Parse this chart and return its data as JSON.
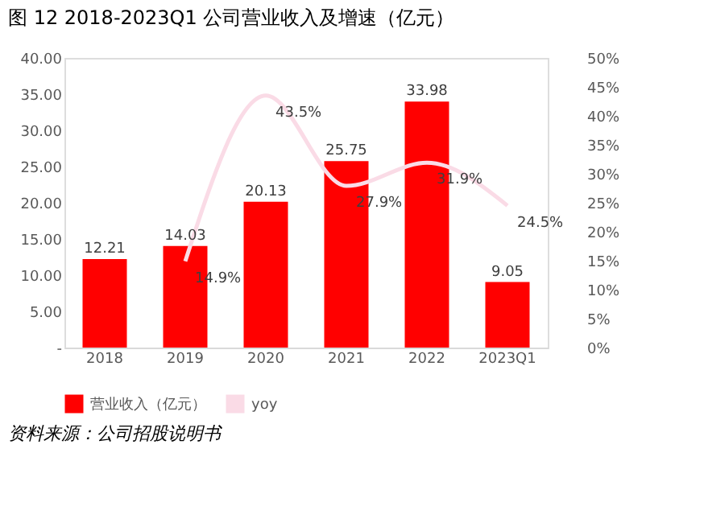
{
  "chart_data": {
    "type": "bar",
    "title": "图 12 2018-2023Q1 公司营业收入及增速（亿元）",
    "categories": [
      "2018",
      "2019",
      "2020",
      "2021",
      "2022",
      "2023Q1"
    ],
    "series": [
      {
        "name": "营业收入（亿元）",
        "color": "#ff0000",
        "values": [
          12.21,
          14.03,
          20.13,
          25.75,
          33.98,
          9.05
        ]
      },
      {
        "name": "yoy",
        "type": "line",
        "axis": "y2",
        "color": "#fadbe6",
        "values": [
          null,
          14.9,
          43.5,
          27.9,
          31.9,
          24.5
        ],
        "value_labels": [
          null,
          "14.9%",
          "43.5%",
          "27.9%",
          "31.9%",
          "24.5%"
        ]
      }
    ],
    "data_labels": true,
    "ylim": [
      0,
      40
    ],
    "yticks": [
      {
        "value": 0,
        "label": "-"
      },
      {
        "value": 5,
        "label": "5.00"
      },
      {
        "value": 10,
        "label": "10.00"
      },
      {
        "value": 15,
        "label": "15.00"
      },
      {
        "value": 20,
        "label": "20.00"
      },
      {
        "value": 25,
        "label": "25.00"
      },
      {
        "value": 30,
        "label": "30.00"
      },
      {
        "value": 35,
        "label": "35.00"
      },
      {
        "value": 40,
        "label": "40.00"
      }
    ],
    "y2lim": [
      0,
      50
    ],
    "y2ticks": [
      {
        "value": 0,
        "label": "0%"
      },
      {
        "value": 5,
        "label": "5%"
      },
      {
        "value": 10,
        "label": "10%"
      },
      {
        "value": 15,
        "label": "15%"
      },
      {
        "value": 20,
        "label": "20%"
      },
      {
        "value": 25,
        "label": "25%"
      },
      {
        "value": 30,
        "label": "30%"
      },
      {
        "value": 35,
        "label": "35%"
      },
      {
        "value": 40,
        "label": "40%"
      },
      {
        "value": 45,
        "label": "45%"
      },
      {
        "value": 50,
        "label": "50%"
      }
    ],
    "grid": false,
    "legend": "bottom",
    "annotations": [
      "资料来源：公司招股说明书"
    ]
  }
}
